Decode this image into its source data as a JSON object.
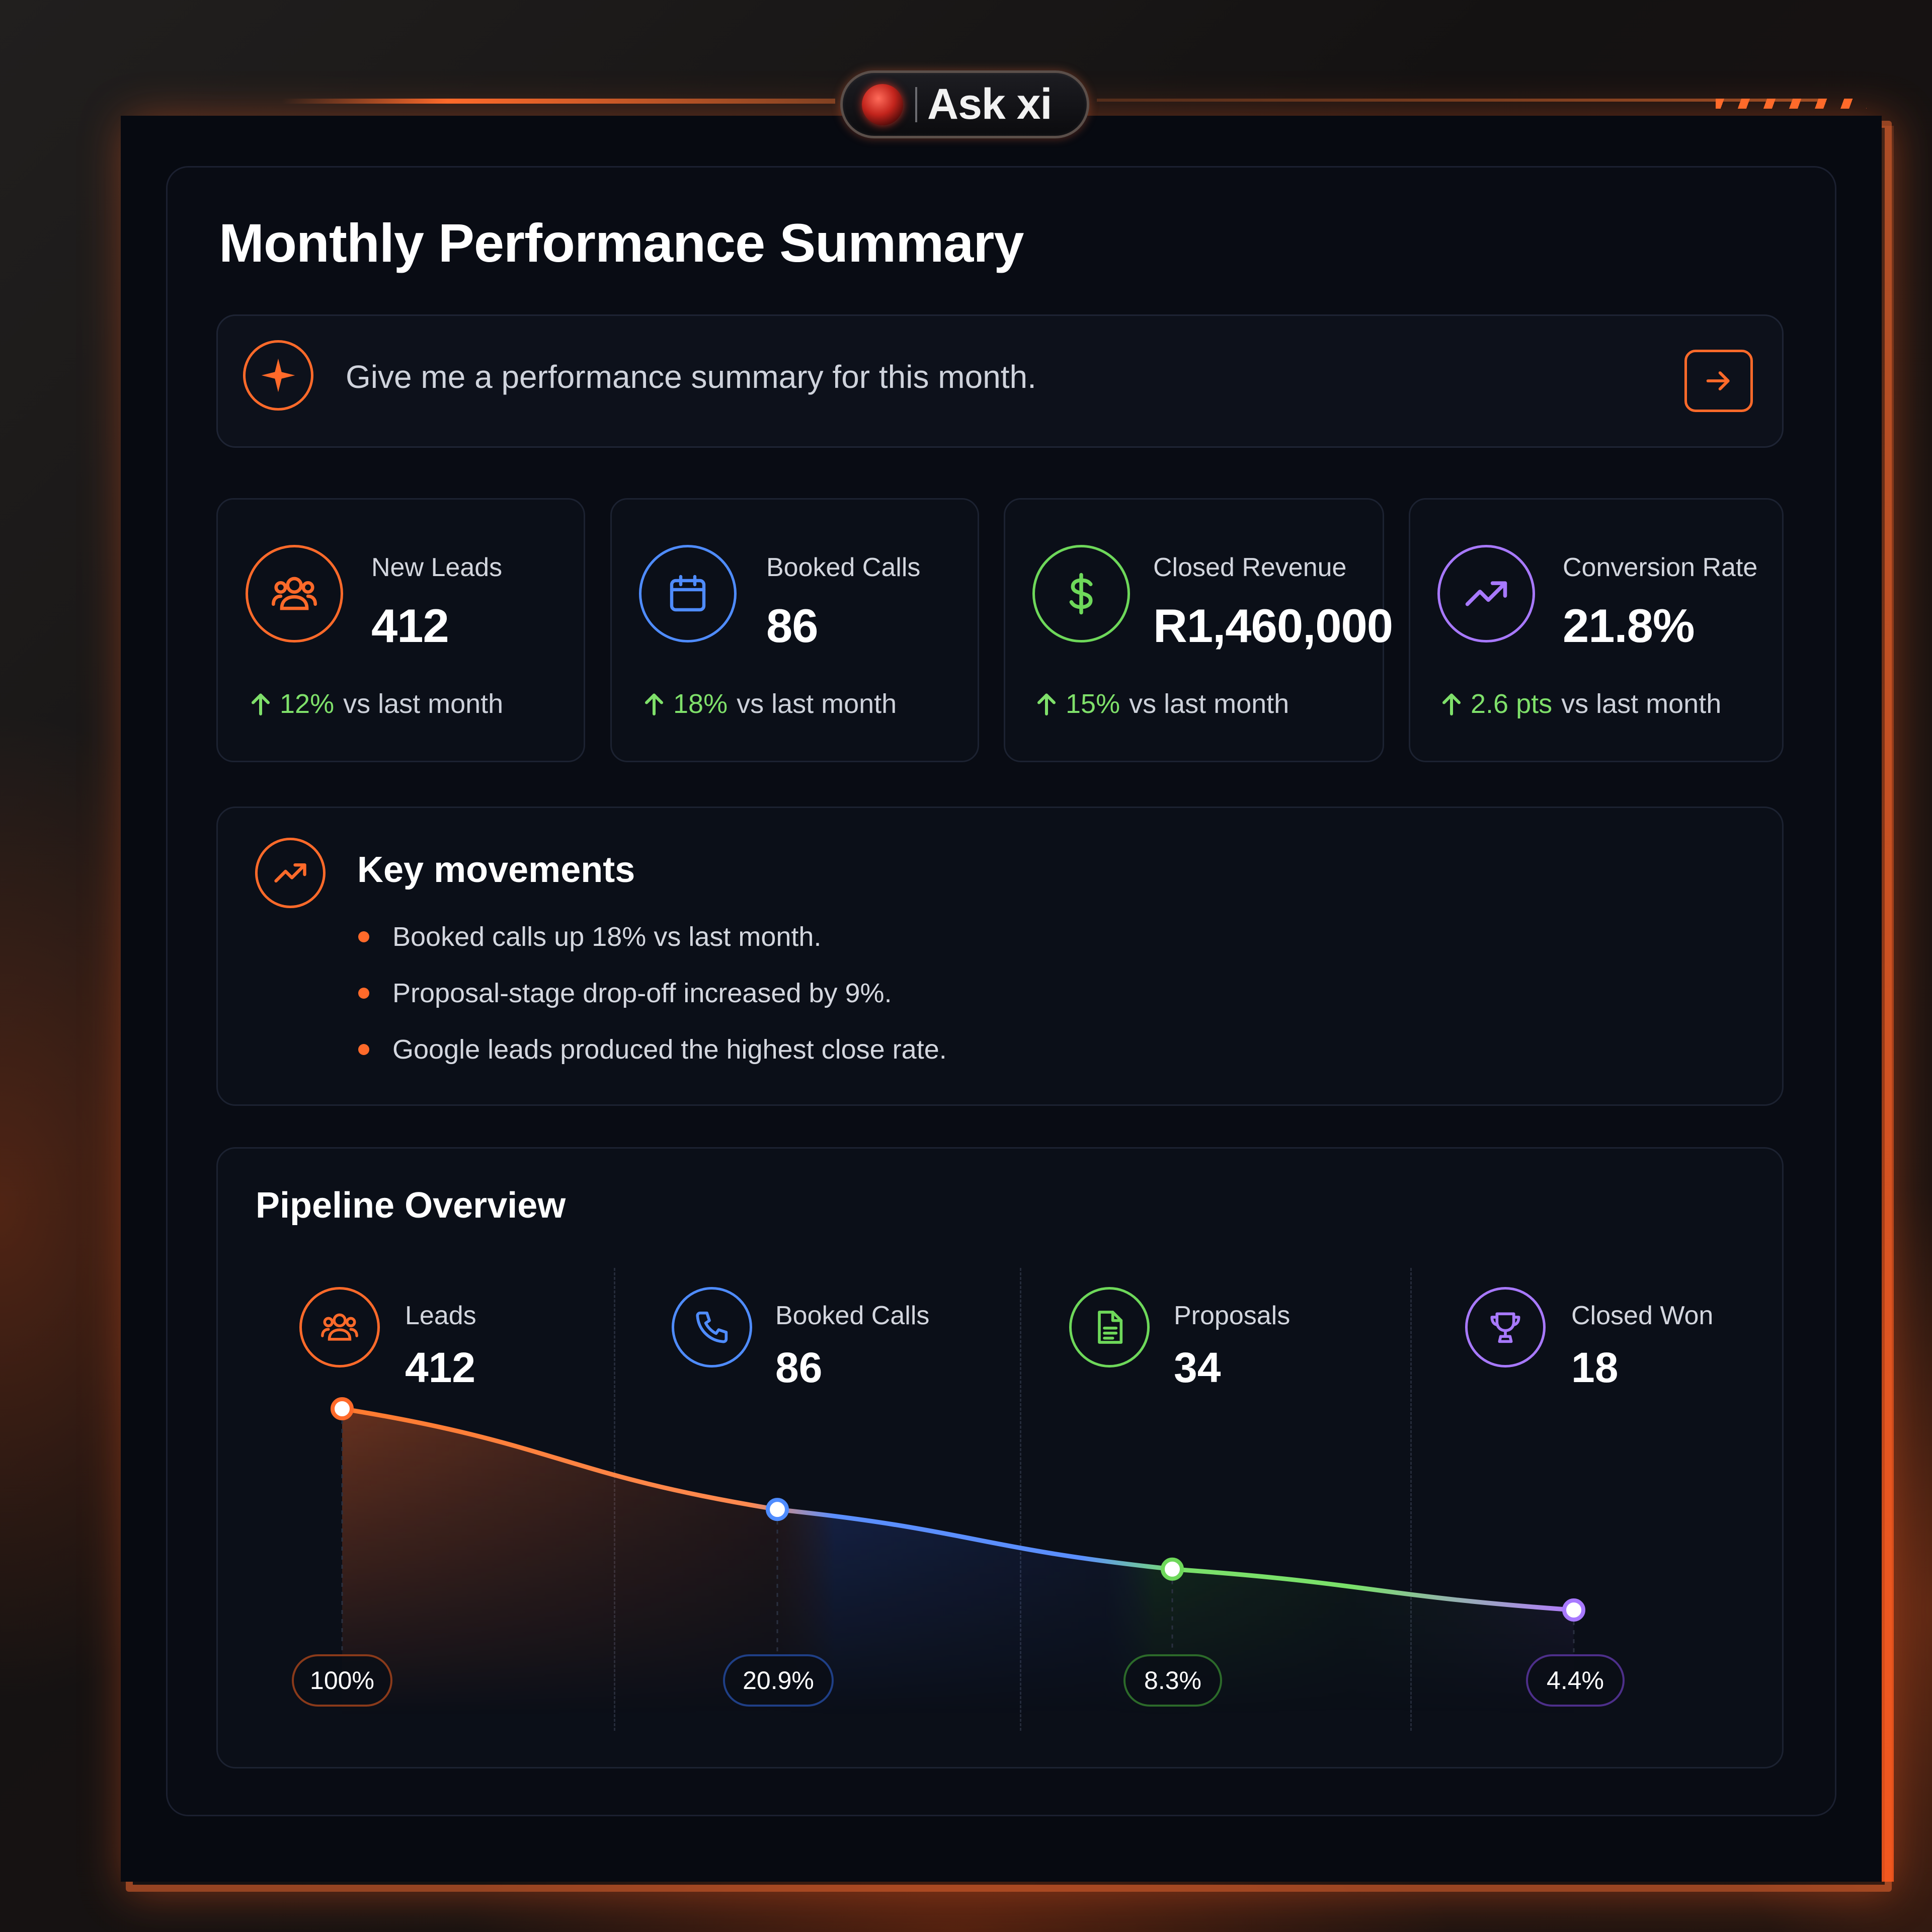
{
  "header": {
    "app_label": "Ask xi"
  },
  "page": {
    "title": "Monthly Performance Summary"
  },
  "prompt": {
    "text": "Give me a performance summary for this month."
  },
  "colors": {
    "orange": "#ff6a2a",
    "blue": "#4f8cff",
    "green": "#6ed85a",
    "purple": "#a879ff",
    "positive": "#7fe06a"
  },
  "stats": [
    {
      "icon": "users-icon",
      "label": "New Leads",
      "value": "412",
      "change": "12%",
      "change_suffix": "vs last month"
    },
    {
      "icon": "calendar-icon",
      "label": "Booked Calls",
      "value": "86",
      "change": "18%",
      "change_suffix": "vs last month"
    },
    {
      "icon": "dollar-icon",
      "label": "Closed Revenue",
      "value": "R1,460,000",
      "change": "15%",
      "change_suffix": "vs last month"
    },
    {
      "icon": "trend-up-icon",
      "label": "Conversion Rate",
      "value": "21.8%",
      "change": "2.6 pts",
      "change_suffix": "vs last month"
    }
  ],
  "key_movements": {
    "title": "Key movements",
    "items": [
      "Booked calls up 18% vs last month.",
      "Proposal-stage drop-off increased by 9%.",
      "Google leads produced the highest close rate."
    ]
  },
  "pipeline": {
    "title": "Pipeline Overview",
    "stages": [
      {
        "icon": "users-icon",
        "label": "Leads",
        "value": "412",
        "pct_label": "100%"
      },
      {
        "icon": "phone-icon",
        "label": "Booked Calls",
        "value": "86",
        "pct_label": "20.9%"
      },
      {
        "icon": "document-icon",
        "label": "Proposals",
        "value": "34",
        "pct_label": "8.3%"
      },
      {
        "icon": "trophy-icon",
        "label": "Closed Won",
        "value": "18",
        "pct_label": "4.4%"
      }
    ]
  },
  "chart_data": {
    "type": "line",
    "title": "Pipeline Overview",
    "categories": [
      "Leads",
      "Booked Calls",
      "Proposals",
      "Closed Won"
    ],
    "values": [
      412,
      86,
      34,
      18
    ],
    "point_labels": [
      "100%",
      "20.9%",
      "8.3%",
      "4.4%"
    ],
    "grid": false
  }
}
